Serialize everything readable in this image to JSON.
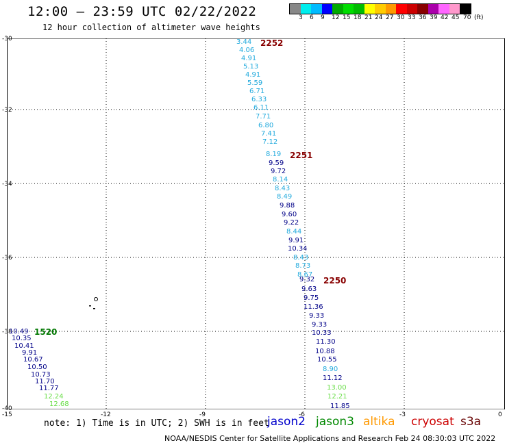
{
  "header": {
    "title": "12:00 – 23:59 UTC 02/22/2022",
    "subtitle": "12 hour collection of altimeter wave heights"
  },
  "colorbar": {
    "colors": [
      "#888888",
      "#00eeee",
      "#00bbff",
      "#0000ff",
      "#00aa00",
      "#00dd00",
      "#00bb00",
      "#ffff00",
      "#ffcc00",
      "#ff9900",
      "#ff0000",
      "#cc0000",
      "#880000",
      "#aa00aa",
      "#ff66ff",
      "#ff99cc",
      "#000000"
    ],
    "labels": [
      "3",
      "6",
      "9",
      "12",
      "15",
      "18",
      "21",
      "24",
      "27",
      "30",
      "33",
      "36",
      "39",
      "42",
      "45",
      "70",
      "(ft)"
    ]
  },
  "axes": {
    "x_ticks": [
      "-15",
      "-12",
      "-9",
      "-6",
      "-3",
      "0"
    ],
    "y_ticks": [
      "-30",
      "-32",
      "-34",
      "-36",
      "-38",
      "-40"
    ]
  },
  "time_labels": [
    {
      "text": "2252",
      "color": "#880000"
    },
    {
      "text": "2251",
      "color": "#880000"
    },
    {
      "text": "2250",
      "color": "#880000"
    },
    {
      "text": "1520",
      "color": "#007700"
    }
  ],
  "values": [
    {
      "text": "3.44",
      "color": "#22aadd"
    },
    {
      "text": "4.06",
      "color": "#22aadd"
    },
    {
      "text": "4.91",
      "color": "#22aadd"
    },
    {
      "text": "5.13",
      "color": "#22aadd"
    },
    {
      "text": "4.91",
      "color": "#22aadd"
    },
    {
      "text": "5.59",
      "color": "#22aadd"
    },
    {
      "text": "6.71",
      "color": "#22aadd"
    },
    {
      "text": "6.33",
      "color": "#22aadd"
    },
    {
      "text": "6.11",
      "color": "#22aadd"
    },
    {
      "text": "7.71",
      "color": "#22aadd"
    },
    {
      "text": "6.80",
      "color": "#22aadd"
    },
    {
      "text": "7.41",
      "color": "#22aadd"
    },
    {
      "text": "7.12",
      "color": "#22aadd"
    },
    {
      "text": "8.19",
      "color": "#22aadd"
    },
    {
      "text": "9.59",
      "color": "#000088"
    },
    {
      "text": "9.72",
      "color": "#000088"
    },
    {
      "text": "8.14",
      "color": "#22aadd"
    },
    {
      "text": "8.43",
      "color": "#22aadd"
    },
    {
      "text": "8.49",
      "color": "#22aadd"
    },
    {
      "text": "9.88",
      "color": "#000088"
    },
    {
      "text": "9.60",
      "color": "#000088"
    },
    {
      "text": "9.22",
      "color": "#000088"
    },
    {
      "text": "8.44",
      "color": "#22aadd"
    },
    {
      "text": "9.91",
      "color": "#000088"
    },
    {
      "text": "10.34",
      "color": "#000088"
    },
    {
      "text": "8.43",
      "color": "#22aadd"
    },
    {
      "text": "8.73",
      "color": "#22aadd"
    },
    {
      "text": "8.67",
      "color": "#22aadd"
    },
    {
      "text": "9.32",
      "color": "#000088"
    },
    {
      "text": "9.63",
      "color": "#000088"
    },
    {
      "text": "9.75",
      "color": "#000088"
    },
    {
      "text": "11.36",
      "color": "#000088"
    },
    {
      "text": "9.33",
      "color": "#000088"
    },
    {
      "text": "9.33",
      "color": "#000088"
    },
    {
      "text": "10.33",
      "color": "#000088"
    },
    {
      "text": "11.30",
      "color": "#000088"
    },
    {
      "text": "10.88",
      "color": "#000088"
    },
    {
      "text": "10.55",
      "color": "#000088"
    },
    {
      "text": "8.90",
      "color": "#22aadd"
    },
    {
      "text": "11.12",
      "color": "#000088"
    },
    {
      "text": "13.00",
      "color": "#66dd44"
    },
    {
      "text": "12.21",
      "color": "#66dd44"
    },
    {
      "text": "11.85",
      "color": "#000088"
    },
    {
      "text": "10.49",
      "color": "#000088"
    },
    {
      "text": "10.35",
      "color": "#000088"
    },
    {
      "text": "10.41",
      "color": "#000088"
    },
    {
      "text": "9.91",
      "color": "#000088"
    },
    {
      "text": "10.67",
      "color": "#000088"
    },
    {
      "text": "10.50",
      "color": "#000088"
    },
    {
      "text": "10.73",
      "color": "#000088"
    },
    {
      "text": "11.70",
      "color": "#000088"
    },
    {
      "text": "11.77",
      "color": "#000088"
    },
    {
      "text": "12.24",
      "color": "#66dd44"
    },
    {
      "text": "12.68",
      "color": "#66dd44"
    }
  ],
  "footer": {
    "note": "note: 1) Time is in UTC; 2) SWH is in feet",
    "satellites": [
      {
        "name": "jason2",
        "color": "#0000cc"
      },
      {
        "name": "jason3",
        "color": "#008800"
      },
      {
        "name": "altika",
        "color": "#ff9900"
      },
      {
        "name": "cryosat",
        "color": "#cc0000"
      },
      {
        "name": "s3a",
        "color": "#660000"
      }
    ],
    "credit": "NOAA/NESDIS Center for Satellite Applications and Research    Feb 24 08:30:03 UTC 2022"
  }
}
